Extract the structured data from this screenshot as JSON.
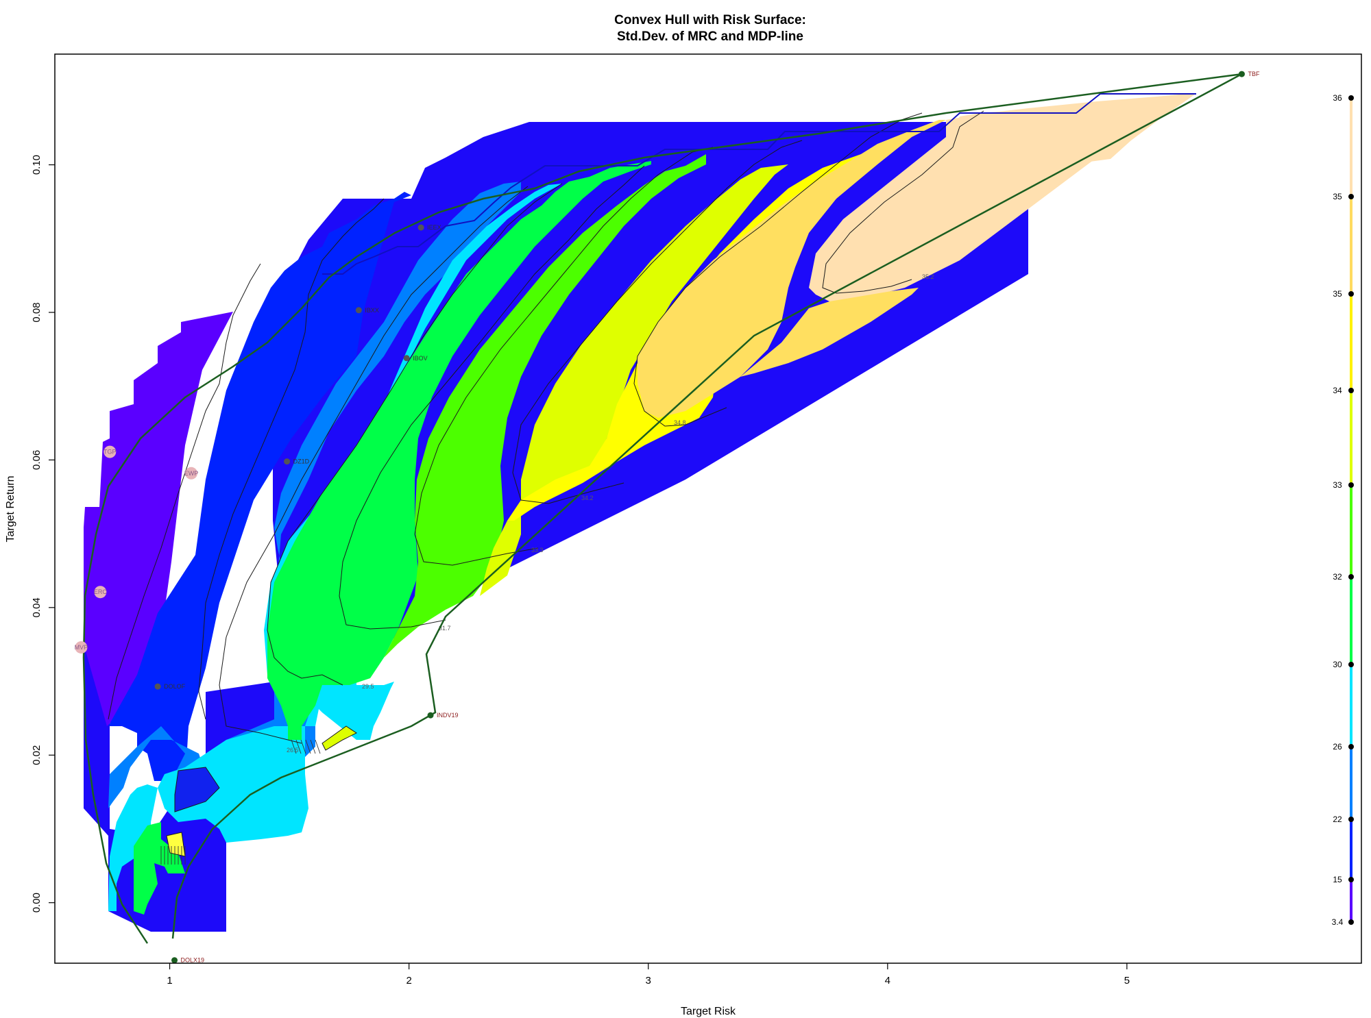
{
  "chart_data": {
    "type": "contour",
    "title": "Convex Hull with Risk Surface:",
    "subtitle": "Std.Dev. of MRC and MDP-line",
    "xlabel": "Target Risk",
    "ylabel": "Target Return",
    "xlim": [
      0.52,
      5.98
    ],
    "ylim": [
      -0.0082,
      0.115
    ],
    "x_ticks": [
      {
        "value": 1,
        "label": "1"
      },
      {
        "value": 2,
        "label": "2"
      },
      {
        "value": 3,
        "label": "3"
      },
      {
        "value": 4,
        "label": "4"
      },
      {
        "value": 5,
        "label": "5"
      }
    ],
    "y_ticks": [
      {
        "value": 0.0,
        "label": "0.00"
      },
      {
        "value": 0.02,
        "label": "0.02"
      },
      {
        "value": 0.04,
        "label": "0.04"
      },
      {
        "value": 0.06,
        "label": "0.06"
      },
      {
        "value": 0.08,
        "label": "0.08"
      },
      {
        "value": 0.1,
        "label": "0.10"
      }
    ],
    "assets": [
      {
        "name": "IEEX",
        "x": 2.05,
        "y": 0.0915,
        "color": "#555555",
        "labelcolor": "#333333"
      },
      {
        "name": "IBXX",
        "x": 1.79,
        "y": 0.0803,
        "color": "#555555",
        "labelcolor": "#333333"
      },
      {
        "name": "IBOV",
        "x": 1.99,
        "y": 0.0738,
        "color": "#555555",
        "labelcolor": "#333333"
      },
      {
        "name": "DZ1D",
        "x": 1.49,
        "y": 0.0598,
        "color": "#555555",
        "labelcolor": "#333333"
      },
      {
        "name": "DOLOF",
        "x": 0.95,
        "y": 0.0293,
        "color": "#555555",
        "labelcolor": "#333333"
      },
      {
        "name": "TBF",
        "x": 5.48,
        "y": 0.1123,
        "color": "#1b5e20",
        "labelcolor": "#8b1a1a"
      },
      {
        "name": "INDV19",
        "x": 2.09,
        "y": 0.0254,
        "color": "#1b5e20",
        "labelcolor": "#8b1a1a"
      },
      {
        "name": "DOLX19",
        "x": 1.02,
        "y": -0.0078,
        "color": "#1b5e20",
        "labelcolor": "#8b1a1a"
      }
    ],
    "portfolios": [
      {
        "name": "TGP",
        "x": 0.75,
        "y": 0.0611
      },
      {
        "name": "EWP",
        "x": 1.09,
        "y": 0.0582
      },
      {
        "name": "ERC",
        "x": 0.71,
        "y": 0.0421
      },
      {
        "name": "MVP",
        "x": 0.63,
        "y": 0.0346
      }
    ],
    "contour_labels": [
      "35.2",
      "34.8",
      "34.2",
      "33.3",
      "31.7",
      "29.5",
      "26.5"
    ],
    "legend": {
      "position": "right",
      "levels": [
        {
          "label": "36",
          "color": "#ffe0b0"
        },
        {
          "label": "35",
          "color": "#ffdb60"
        },
        {
          "label": "35",
          "color": "#fff200"
        },
        {
          "label": "34",
          "color": "#dfff00"
        },
        {
          "label": "33",
          "color": "#4cff00"
        },
        {
          "label": "32",
          "color": "#00ff48"
        },
        {
          "label": "30",
          "color": "#00e5ff"
        },
        {
          "label": "26",
          "color": "#0080ff"
        },
        {
          "label": "22",
          "color": "#0022ff"
        },
        {
          "label": "15",
          "color": "#5a00ff"
        },
        {
          "label": "3.4",
          "color": "#5a00ff"
        }
      ]
    },
    "colors": {
      "hull": "#1b5e20",
      "mdp_line": "#1010c0",
      "portfolio_fill": "#e8b4b8",
      "band_colors": [
        "#1d0af9",
        "#5a00ff",
        "#0022ff",
        "#0080ff",
        "#00e5ff",
        "#00ff48",
        "#4cff00",
        "#dfff00",
        "#ffff00",
        "#ffdf60",
        "#ffe0b0"
      ]
    }
  }
}
